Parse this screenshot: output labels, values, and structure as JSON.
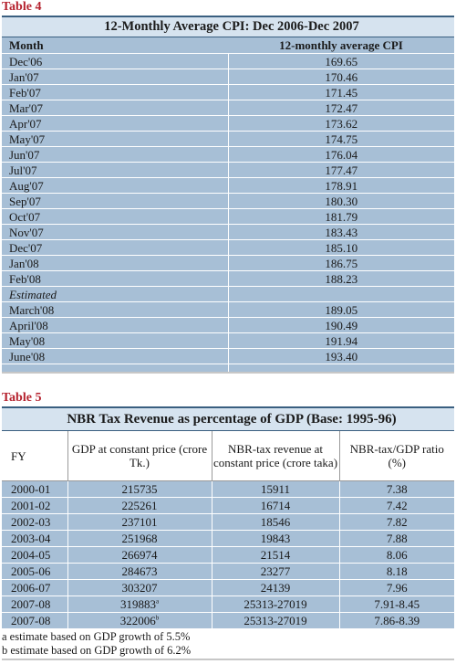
{
  "table4": {
    "caption": "Table 4",
    "title": "12-Monthly Average CPI: Dec 2006-Dec 2007",
    "col_month": "Month",
    "col_value": "12-monthly average CPI",
    "rows": [
      {
        "month": "Dec'06",
        "value": "169.65"
      },
      {
        "month": "Jan'07",
        "value": "170.46"
      },
      {
        "month": "Feb'07",
        "value": "171.45"
      },
      {
        "month": "Mar'07",
        "value": "172.47"
      },
      {
        "month": "Apr'07",
        "value": "173.62"
      },
      {
        "month": "May'07",
        "value": "174.75"
      },
      {
        "month": "Jun'07",
        "value": "176.04"
      },
      {
        "month": "Jul'07",
        "value": "177.47"
      },
      {
        "month": "Aug'07",
        "value": "178.91"
      },
      {
        "month": "Sep'07",
        "value": "180.30"
      },
      {
        "month": "Oct'07",
        "value": "181.79"
      },
      {
        "month": "Nov'07",
        "value": "183.43"
      },
      {
        "month": "Dec'07",
        "value": "185.10"
      },
      {
        "month": "Jan'08",
        "value": "186.75"
      },
      {
        "month": "Feb'08",
        "value": "188.23"
      }
    ],
    "estimated_label": "Estimated",
    "estimated_rows": [
      {
        "month": "March'08",
        "value": "189.05"
      },
      {
        "month": "April'08",
        "value": "190.49"
      },
      {
        "month": "May'08",
        "value": "191.94"
      },
      {
        "month": "June'08",
        "value": "193.40"
      }
    ]
  },
  "table5": {
    "caption": "Table 5",
    "title": "NBR Tax Revenue as percentage of GDP (Base: 1995-96)",
    "col_fy": "FY",
    "col_gdp": "GDP at constant price (crore Tk.)",
    "col_rev": "NBR-tax revenue at constant price (crore taka)",
    "col_ratio": "NBR-tax/GDP ratio (%)",
    "rows": [
      {
        "fy": "2000-01",
        "gdp": "215735",
        "gdp_mark": "",
        "rev": "15911",
        "ratio": "7.38"
      },
      {
        "fy": "2001-02",
        "gdp": "225261",
        "gdp_mark": "",
        "rev": "16714",
        "ratio": "7.42"
      },
      {
        "fy": "2002-03",
        "gdp": "237101",
        "gdp_mark": "",
        "rev": "18546",
        "ratio": "7.82"
      },
      {
        "fy": "2003-04",
        "gdp": "251968",
        "gdp_mark": "",
        "rev": "19843",
        "ratio": "7.88"
      },
      {
        "fy": "2004-05",
        "gdp": "266974",
        "gdp_mark": "",
        "rev": "21514",
        "ratio": "8.06"
      },
      {
        "fy": "2005-06",
        "gdp": "284673",
        "gdp_mark": "",
        "rev": "23277",
        "ratio": "8.18"
      },
      {
        "fy": "2006-07",
        "gdp": "303207",
        "gdp_mark": "",
        "rev": "24139",
        "ratio": "7.96"
      },
      {
        "fy": "2007-08",
        "gdp": "319883",
        "gdp_mark": "a",
        "rev": "25313-27019",
        "ratio": "7.91-8.45"
      },
      {
        "fy": "2007-08",
        "gdp": "322006",
        "gdp_mark": "b",
        "rev": "25313-27019",
        "ratio": "7.86-8.39"
      }
    ],
    "notes": [
      "a estimate based on GDP growth of 5.5%",
      "b estimate based on GDP growth of 6.2%"
    ]
  }
}
